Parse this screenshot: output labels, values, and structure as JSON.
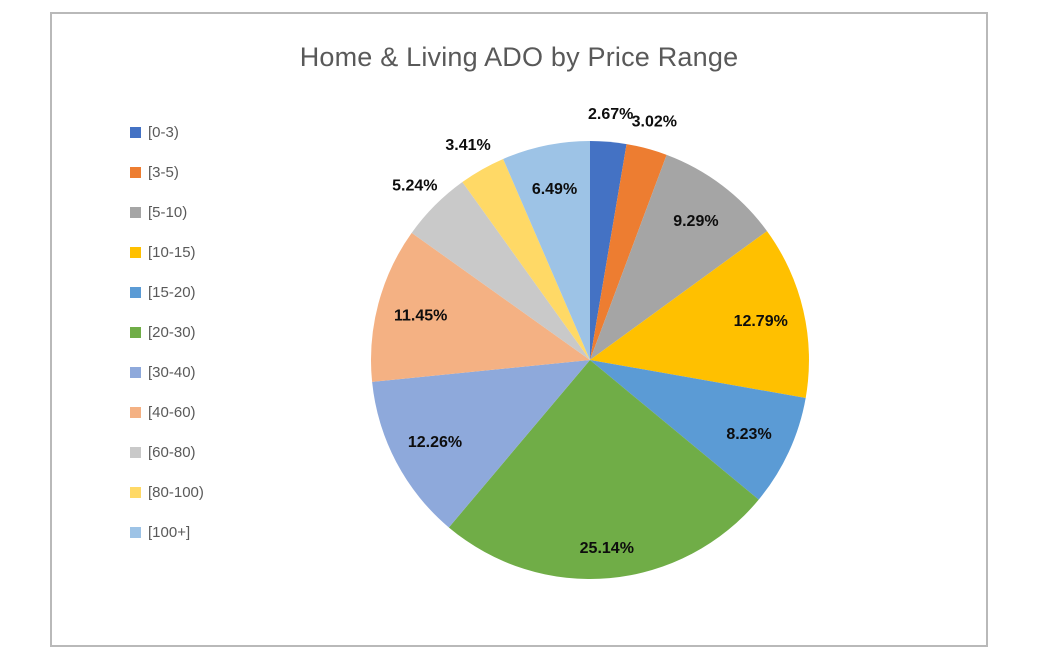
{
  "window": {
    "background_color": "#ffffff",
    "frame_border_color": "#b9b9b9"
  },
  "chart_data": {
    "type": "pie",
    "title": "Home & Living ADO by Price Range",
    "categories": [
      "[0-3)",
      "[3-5)",
      "[5-10)",
      "[10-15)",
      "[15-20)",
      "[20-30)",
      "[30-40)",
      "[40-60)",
      "[60-80)",
      "[80-100)",
      "[100+]"
    ],
    "values": [
      2.67,
      3.02,
      9.29,
      12.79,
      8.23,
      25.14,
      12.26,
      11.45,
      5.24,
      3.41,
      6.49
    ],
    "data_labels": [
      "2.67%",
      "3.02%",
      "9.29%",
      "12.79%",
      "8.23%",
      "25.14%",
      "12.26%",
      "11.45%",
      "5.24%",
      "3.41%",
      "6.49%"
    ],
    "colors": [
      "#4472C4",
      "#ED7D31",
      "#A5A5A5",
      "#FFC000",
      "#5B9BD5",
      "#70AD47",
      "#8EA9DB",
      "#F4B183",
      "#C9C9C9",
      "#FFD966",
      "#9DC3E6"
    ],
    "legend_position": "left",
    "start_angle_deg": 0,
    "direction": "clockwise",
    "title_color": "#595959",
    "legend_text_color": "#595959",
    "data_label_color": "#0d0d0d"
  }
}
